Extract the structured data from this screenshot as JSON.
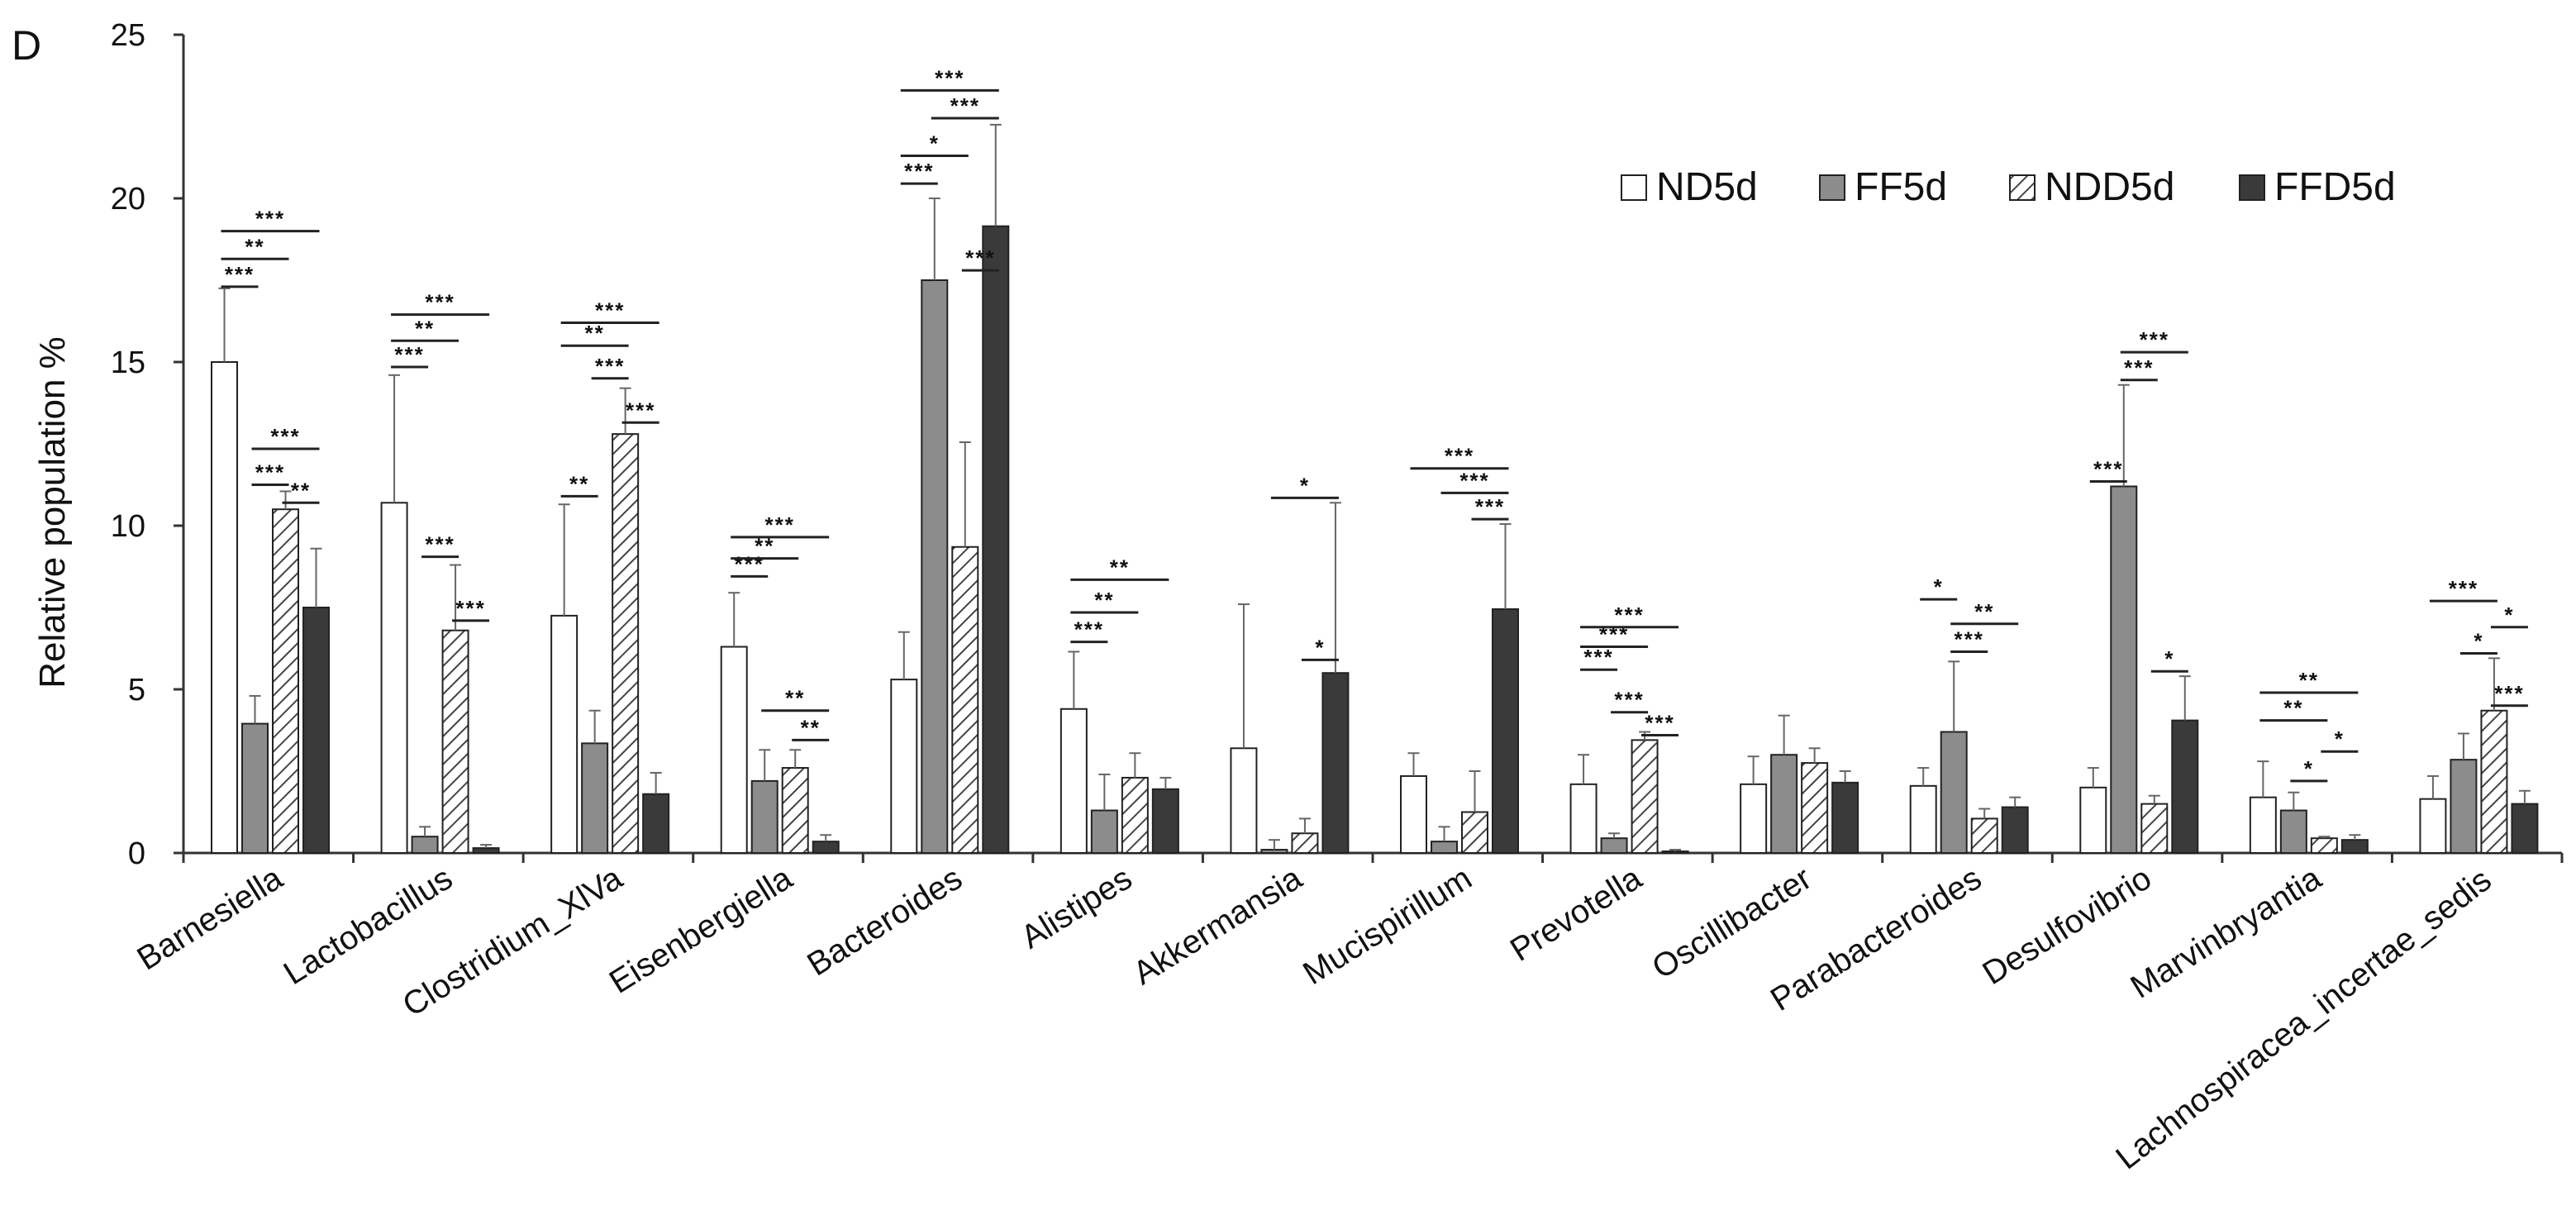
{
  "panel_label": "D",
  "chart_data": {
    "type": "bar",
    "title": "",
    "xlabel": "",
    "ylabel": "Relative population %",
    "ylim": [
      0,
      25
    ],
    "yticks": [
      0,
      5,
      10,
      15,
      20,
      25
    ],
    "grid": false,
    "legend_position": "top-right",
    "categories": [
      "Barnesiella",
      "Lactobacillus",
      "Clostridium_XlVa",
      "Eisenbergiella",
      "Bacteroides",
      "Alistipes",
      "Akkermansia",
      "Mucispirillum",
      "Prevotella",
      "Oscillibacter",
      "Parabacteroides",
      "Desulfovibrio",
      "Marvinbryantia",
      "Lachnospiracea_incertae_sedis"
    ],
    "series": [
      {
        "name": "ND5d",
        "style": "white",
        "values": [
          15.0,
          10.7,
          7.25,
          6.3,
          5.3,
          4.4,
          3.2,
          2.35,
          2.1,
          2.1,
          2.05,
          2.0,
          1.7,
          1.65
        ],
        "errors": [
          2.25,
          3.9,
          3.4,
          1.65,
          1.45,
          1.75,
          4.4,
          0.7,
          0.9,
          0.85,
          0.55,
          0.6,
          1.1,
          0.7
        ]
      },
      {
        "name": "FF5d",
        "style": "gray",
        "values": [
          3.95,
          0.5,
          3.35,
          2.2,
          17.5,
          1.3,
          0.1,
          0.35,
          0.45,
          3.0,
          3.7,
          11.2,
          1.3,
          2.85
        ],
        "errors": [
          0.85,
          0.3,
          1.0,
          0.95,
          2.5,
          1.1,
          0.3,
          0.45,
          0.15,
          1.2,
          2.15,
          3.1,
          0.55,
          0.8
        ]
      },
      {
        "name": "NDD5d",
        "style": "hatched",
        "values": [
          10.5,
          6.8,
          12.8,
          2.6,
          9.35,
          2.3,
          0.6,
          1.25,
          3.45,
          2.75,
          1.05,
          1.5,
          0.45,
          4.35
        ],
        "errors": [
          0.55,
          2.0,
          1.4,
          0.55,
          3.2,
          0.75,
          0.45,
          1.25,
          0.25,
          0.45,
          0.3,
          0.25,
          0.05,
          1.6
        ]
      },
      {
        "name": "FFD5d",
        "style": "black",
        "values": [
          7.5,
          0.15,
          1.8,
          0.35,
          19.15,
          1.95,
          5.5,
          7.45,
          0.05,
          2.15,
          1.4,
          4.05,
          0.4,
          1.5
        ],
        "errors": [
          1.8,
          0.1,
          0.65,
          0.2,
          3.1,
          0.35,
          5.2,
          2.6,
          0.05,
          0.35,
          0.3,
          1.35,
          0.15,
          0.4
        ]
      }
    ],
    "significance": [
      {
        "cat": 0,
        "from": 0,
        "to": 1,
        "y": 17.3,
        "label": "***"
      },
      {
        "cat": 0,
        "from": 0,
        "to": 2,
        "y": 18.15,
        "label": "**"
      },
      {
        "cat": 0,
        "from": 0,
        "to": 3,
        "y": 19.0,
        "label": "***"
      },
      {
        "cat": 0,
        "from": 1,
        "to": 2,
        "y": 11.25,
        "label": "***"
      },
      {
        "cat": 0,
        "from": 1,
        "to": 3,
        "y": 12.35,
        "label": "***"
      },
      {
        "cat": 0,
        "from": 2,
        "to": 3,
        "y": 10.7,
        "label": "**"
      },
      {
        "cat": 1,
        "from": 0,
        "to": 1,
        "y": 14.85,
        "label": "***"
      },
      {
        "cat": 1,
        "from": 0,
        "to": 2,
        "y": 15.65,
        "label": "**"
      },
      {
        "cat": 1,
        "from": 0,
        "to": 3,
        "y": 16.45,
        "label": "***"
      },
      {
        "cat": 1,
        "from": 1,
        "to": 2,
        "y": 9.05,
        "label": "***"
      },
      {
        "cat": 1,
        "from": 2,
        "to": 3,
        "y": 7.1,
        "label": "***"
      },
      {
        "cat": 2,
        "from": 0,
        "to": 1,
        "y": 10.9,
        "label": "**"
      },
      {
        "cat": 2,
        "from": 0,
        "to": 2,
        "y": 15.5,
        "label": "**"
      },
      {
        "cat": 2,
        "from": 0,
        "to": 3,
        "y": 16.2,
        "label": "***"
      },
      {
        "cat": 2,
        "from": 1,
        "to": 2,
        "y": 14.5,
        "label": "***"
      },
      {
        "cat": 2,
        "from": 2,
        "to": 3,
        "y": 13.15,
        "label": "***"
      },
      {
        "cat": 3,
        "from": 0,
        "to": 1,
        "y": 8.45,
        "label": "***"
      },
      {
        "cat": 3,
        "from": 0,
        "to": 2,
        "y": 9.0,
        "label": "**"
      },
      {
        "cat": 3,
        "from": 0,
        "to": 3,
        "y": 9.65,
        "label": "***"
      },
      {
        "cat": 3,
        "from": 1,
        "to": 3,
        "y": 4.35,
        "label": "**"
      },
      {
        "cat": 3,
        "from": 2,
        "to": 3,
        "y": 3.45,
        "label": "**"
      },
      {
        "cat": 4,
        "from": 0,
        "to": 1,
        "y": 20.45,
        "label": "***"
      },
      {
        "cat": 4,
        "from": 0,
        "to": 2,
        "y": 21.3,
        "label": "*"
      },
      {
        "cat": 4,
        "from": 0,
        "to": 3,
        "y": 23.3,
        "label": "***"
      },
      {
        "cat": 4,
        "from": 1,
        "to": 3,
        "y": 22.45,
        "label": "***"
      },
      {
        "cat": 4,
        "from": 2,
        "to": 3,
        "y": 17.8,
        "label": "***"
      },
      {
        "cat": 5,
        "from": 0,
        "to": 1,
        "y": 6.45,
        "label": "***"
      },
      {
        "cat": 5,
        "from": 0,
        "to": 2,
        "y": 7.35,
        "label": "**"
      },
      {
        "cat": 5,
        "from": 0,
        "to": 3,
        "y": 8.35,
        "label": "**"
      },
      {
        "cat": 6,
        "from": 1,
        "to": 3,
        "y": 10.85,
        "label": "*"
      },
      {
        "cat": 6,
        "from": 2,
        "to": 3,
        "y": 5.9,
        "label": "*"
      },
      {
        "cat": 7,
        "from": 0,
        "to": 3,
        "y": 11.75,
        "label": "***"
      },
      {
        "cat": 7,
        "from": 1,
        "to": 3,
        "y": 11.0,
        "label": "***"
      },
      {
        "cat": 7,
        "from": 2,
        "to": 3,
        "y": 10.2,
        "label": "***"
      },
      {
        "cat": 8,
        "from": 0,
        "to": 1,
        "y": 5.6,
        "label": "***"
      },
      {
        "cat": 8,
        "from": 0,
        "to": 2,
        "y": 6.3,
        "label": "***"
      },
      {
        "cat": 8,
        "from": 0,
        "to": 3,
        "y": 6.9,
        "label": "***"
      },
      {
        "cat": 8,
        "from": 1,
        "to": 2,
        "y": 4.3,
        "label": "***"
      },
      {
        "cat": 8,
        "from": 2,
        "to": 3,
        "y": 3.6,
        "label": "***"
      },
      {
        "cat": 10,
        "from": 0,
        "to": 1,
        "y": 7.75,
        "label": "*"
      },
      {
        "cat": 10,
        "from": 1,
        "to": 3,
        "y": 7.0,
        "label": "**"
      },
      {
        "cat": 10,
        "from": 1,
        "to": 2,
        "y": 6.15,
        "label": "***"
      },
      {
        "cat": 11,
        "from": 0,
        "to": 1,
        "y": 11.35,
        "label": "***"
      },
      {
        "cat": 11,
        "from": 1,
        "to": 2,
        "y": 14.45,
        "label": "***"
      },
      {
        "cat": 11,
        "from": 1,
        "to": 3,
        "y": 15.3,
        "label": "***"
      },
      {
        "cat": 11,
        "from": 2,
        "to": 3,
        "y": 5.55,
        "label": "*"
      },
      {
        "cat": 12,
        "from": 0,
        "to": 3,
        "y": 4.9,
        "label": "**"
      },
      {
        "cat": 12,
        "from": 0,
        "to": 2,
        "y": 4.05,
        "label": "**"
      },
      {
        "cat": 12,
        "from": 2,
        "to": 3,
        "y": 3.1,
        "label": "*"
      },
      {
        "cat": 12,
        "from": 1,
        "to": 2,
        "y": 2.2,
        "label": "*"
      },
      {
        "cat": 13,
        "from": 0,
        "to": 2,
        "y": 7.7,
        "label": "***"
      },
      {
        "cat": 13,
        "from": 2,
        "to": 3,
        "y": 6.9,
        "label": "*"
      },
      {
        "cat": 13,
        "from": 1,
        "to": 2,
        "y": 6.1,
        "label": "*"
      },
      {
        "cat": 13,
        "from": 2,
        "to": 3,
        "y": 4.5,
        "label": "***"
      }
    ]
  }
}
